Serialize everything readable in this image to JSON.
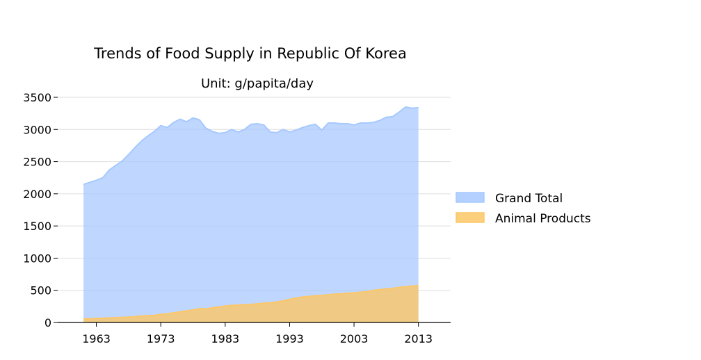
{
  "chart_data": {
    "type": "area",
    "title": "Trends of Food Supply in Republic Of Korea",
    "subtitle": "Unit: g/papita/day",
    "xlabel": "",
    "ylabel": "",
    "xlim": [
      1957,
      2018
    ],
    "ylim": [
      0,
      3500
    ],
    "x_ticks": [
      "1963",
      "1973",
      "1983",
      "1993",
      "2003",
      "2013"
    ],
    "y_ticks": [
      "0",
      "500",
      "1000",
      "1500",
      "2000",
      "2500",
      "3000",
      "3500"
    ],
    "grid": "horizontal",
    "legend_position": "right",
    "x": [
      1961,
      1962,
      1963,
      1964,
      1965,
      1966,
      1967,
      1968,
      1969,
      1970,
      1971,
      1972,
      1973,
      1974,
      1975,
      1976,
      1977,
      1978,
      1979,
      1980,
      1981,
      1982,
      1983,
      1984,
      1985,
      1986,
      1987,
      1988,
      1989,
      1990,
      1991,
      1992,
      1993,
      1994,
      1995,
      1996,
      1997,
      1998,
      1999,
      2000,
      2001,
      2002,
      2003,
      2004,
      2005,
      2006,
      2007,
      2008,
      2009,
      2010,
      2011,
      2012,
      2013
    ],
    "series": [
      {
        "name": "Grand Total",
        "color": "#a6c8ff",
        "values": [
          2145,
          2180,
          2210,
          2250,
          2370,
          2440,
          2510,
          2610,
          2720,
          2820,
          2900,
          2970,
          3060,
          3030,
          3110,
          3160,
          3120,
          3180,
          3150,
          3020,
          2970,
          2940,
          2950,
          3000,
          2960,
          3000,
          3080,
          3090,
          3070,
          2960,
          2950,
          3000,
          2960,
          2990,
          3030,
          3060,
          3080,
          2990,
          3100,
          3100,
          3090,
          3090,
          3070,
          3100,
          3100,
          3110,
          3140,
          3190,
          3200,
          3270,
          3350,
          3330,
          3340
        ]
      },
      {
        "name": "Animal Products",
        "color": "#fcc766",
        "values": [
          55,
          58,
          62,
          65,
          70,
          75,
          78,
          82,
          90,
          100,
          105,
          110,
          125,
          135,
          150,
          165,
          180,
          195,
          215,
          210,
          230,
          240,
          255,
          265,
          270,
          275,
          280,
          290,
          300,
          305,
          320,
          335,
          360,
          380,
          395,
          405,
          415,
          420,
          430,
          440,
          445,
          455,
          460,
          470,
          480,
          500,
          510,
          520,
          530,
          545,
          555,
          565,
          575
        ]
      }
    ]
  }
}
